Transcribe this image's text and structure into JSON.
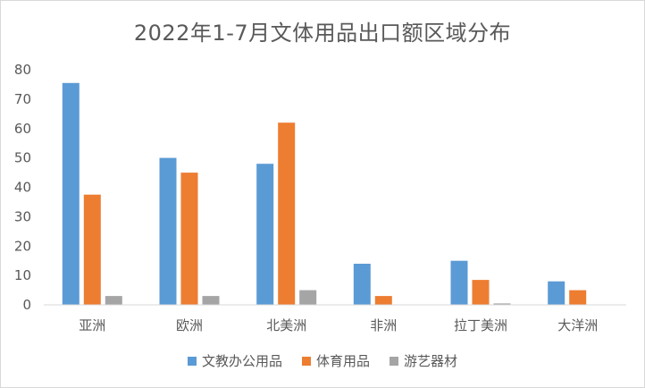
{
  "chart_data": {
    "type": "bar",
    "title": "2022年1-7月文体用品出口额区域分布",
    "xlabel": "",
    "ylabel": "",
    "categories": [
      "亚洲",
      "欧洲",
      "北美洲",
      "非洲",
      "拉丁美洲",
      "大洋洲"
    ],
    "series": [
      {
        "name": "文教办公用品",
        "color": "#5b9bd5",
        "values": [
          75.5,
          50,
          48,
          14,
          15,
          8
        ]
      },
      {
        "name": "体育用品",
        "color": "#ed7d31",
        "values": [
          37.5,
          45,
          62,
          3,
          8.5,
          5
        ]
      },
      {
        "name": "游艺器材",
        "color": "#a5a5a5",
        "values": [
          3,
          3,
          5,
          0,
          0.5,
          0
        ]
      }
    ],
    "ylim": [
      0,
      80
    ],
    "yticks": [
      0,
      10,
      20,
      30,
      40,
      50,
      60,
      70,
      80
    ],
    "grid": false,
    "legend": "bottom"
  }
}
